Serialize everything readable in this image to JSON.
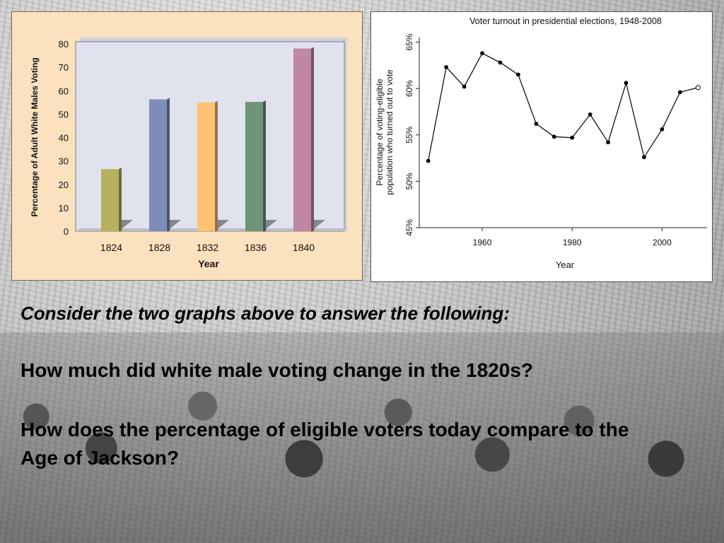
{
  "charts_left": {
    "ylabel": "Percentage of Adult White Males Voting",
    "xlabel": "Year"
  },
  "charts_right": {
    "title": "Voter turnout in presidential elections, 1948-2008",
    "ylabel_line1": "Percentage of voting-eligible",
    "ylabel_line2": "population who turned out to vote",
    "xlabel": "Year"
  },
  "chart_data": [
    {
      "type": "bar",
      "categories": [
        "1824",
        "1828",
        "1832",
        "1836",
        "1840"
      ],
      "values": [
        26.5,
        56.3,
        55.0,
        55.2,
        78.0
      ],
      "bar_colors": [
        "#b5b15e",
        "#7e8db8",
        "#fec272",
        "#6e9478",
        "#bf87a2"
      ],
      "ylabel": "Percentage of Adult White Males Voting",
      "xlabel": "Year",
      "ylim": [
        0,
        80
      ],
      "yticks": [
        "0",
        "10",
        "20",
        "30",
        "40",
        "50",
        "60",
        "70",
        "80"
      ],
      "grid": false,
      "plot_background": "#e0e3ee"
    },
    {
      "type": "line",
      "title": "Voter turnout in presidential elections, 1948-2008",
      "ylabel": "Percentage of voting-eligible population who turned out to vote",
      "xlabel": "Year",
      "x": [
        1948,
        1952,
        1956,
        1960,
        1964,
        1968,
        1972,
        1976,
        1980,
        1984,
        1988,
        1992,
        1996,
        2000,
        2004,
        2008
      ],
      "y": [
        52.2,
        62.3,
        60.2,
        63.8,
        62.8,
        61.5,
        56.2,
        54.8,
        54.7,
        57.2,
        54.2,
        60.6,
        52.6,
        55.6,
        59.6,
        60.1
      ],
      "xlim": [
        1946,
        2010
      ],
      "ylim": [
        45,
        65.5
      ],
      "xticks": [
        "1960",
        "1980",
        "2000"
      ],
      "yticks": [
        "45%",
        "50%",
        "55%",
        "60%",
        "65%"
      ],
      "grid": false
    }
  ],
  "prompt": {
    "intro": "Consider the two graphs above to answer the following:",
    "question1": "How much did white male voting change in the 1820s?",
    "question2": "How does the percentage of eligible voters today compare to the Age of Jackson?"
  }
}
